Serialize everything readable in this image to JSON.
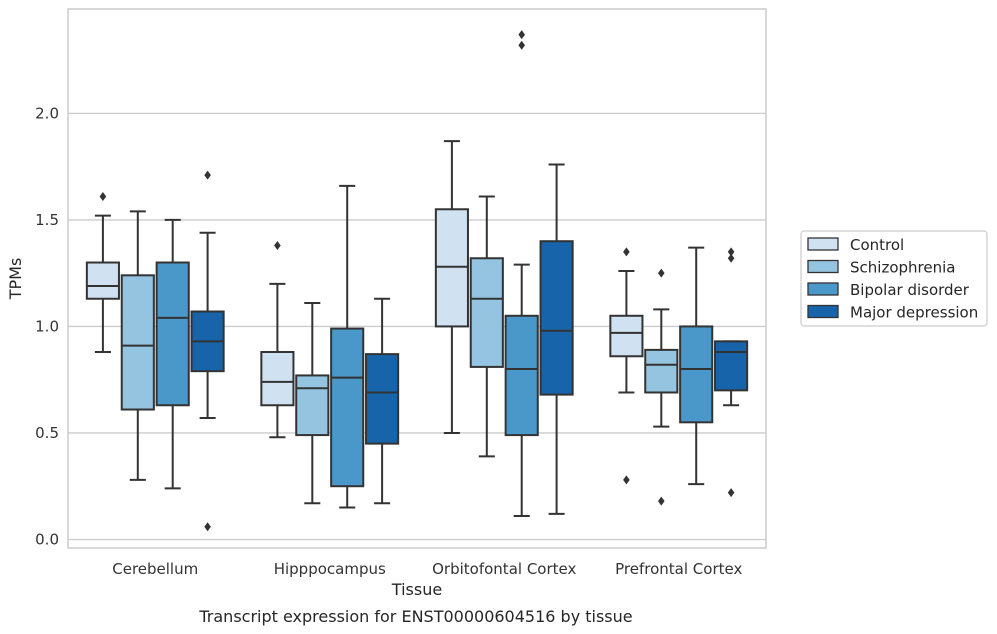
{
  "chart_data": {
    "type": "boxplot",
    "title": "",
    "caption": "Transcript expression for ENST00000604516 by tissue",
    "xlabel": "Tissue",
    "ylabel": "TPMs",
    "ylim": [
      -0.04,
      2.49
    ],
    "yticks": [
      0.0,
      0.5,
      1.0,
      1.5,
      2.0
    ],
    "ytick_labels": [
      "0.0",
      "0.5",
      "1.0",
      "1.5",
      "2.0"
    ],
    "grid": true,
    "legend_position": "right",
    "categories": [
      "Cerebellum",
      "Hipppocampus",
      "Orbitofontal Cortex",
      "Prefrontal Cortex"
    ],
    "series": [
      {
        "name": "Control",
        "color": "#d0e1f2",
        "boxes": [
          {
            "whisker_low": 0.88,
            "q1": 1.13,
            "median": 1.19,
            "q3": 1.3,
            "whisker_high": 1.52,
            "outliers": [
              1.61
            ]
          },
          {
            "whisker_low": 0.48,
            "q1": 0.63,
            "median": 0.74,
            "q3": 0.88,
            "whisker_high": 1.2,
            "outliers": [
              1.38
            ]
          },
          {
            "whisker_low": 0.5,
            "q1": 1.0,
            "median": 1.28,
            "q3": 1.55,
            "whisker_high": 1.87,
            "outliers": []
          },
          {
            "whisker_low": 0.69,
            "q1": 0.86,
            "median": 0.97,
            "q3": 1.05,
            "whisker_high": 1.26,
            "outliers": [
              1.35,
              0.28
            ]
          }
        ]
      },
      {
        "name": "Schizophrenia",
        "color": "#94c4df",
        "boxes": [
          {
            "whisker_low": 0.28,
            "q1": 0.61,
            "median": 0.91,
            "q3": 1.24,
            "whisker_high": 1.54,
            "outliers": []
          },
          {
            "whisker_low": 0.17,
            "q1": 0.49,
            "median": 0.71,
            "q3": 0.77,
            "whisker_high": 1.11,
            "outliers": []
          },
          {
            "whisker_low": 0.39,
            "q1": 0.81,
            "median": 1.13,
            "q3": 1.32,
            "whisker_high": 1.61,
            "outliers": []
          },
          {
            "whisker_low": 0.53,
            "q1": 0.69,
            "median": 0.82,
            "q3": 0.89,
            "whisker_high": 1.08,
            "outliers": [
              1.25,
              0.18
            ]
          }
        ]
      },
      {
        "name": "Bipolar disorder",
        "color": "#4a98c9",
        "boxes": [
          {
            "whisker_low": 0.24,
            "q1": 0.63,
            "median": 1.04,
            "q3": 1.3,
            "whisker_high": 1.5,
            "outliers": []
          },
          {
            "whisker_low": 0.15,
            "q1": 0.25,
            "median": 0.76,
            "q3": 0.99,
            "whisker_high": 1.66,
            "outliers": []
          },
          {
            "whisker_low": 0.11,
            "q1": 0.49,
            "median": 0.8,
            "q3": 1.05,
            "whisker_high": 1.29,
            "outliers": [
              2.32,
              2.37
            ]
          },
          {
            "whisker_low": 0.26,
            "q1": 0.55,
            "median": 0.8,
            "q3": 1.0,
            "whisker_high": 1.37,
            "outliers": []
          }
        ]
      },
      {
        "name": "Major depression",
        "color": "#1764ab",
        "boxes": [
          {
            "whisker_low": 0.57,
            "q1": 0.79,
            "median": 0.93,
            "q3": 1.07,
            "whisker_high": 1.44,
            "outliers": [
              1.71,
              0.06
            ]
          },
          {
            "whisker_low": 0.17,
            "q1": 0.45,
            "median": 0.69,
            "q3": 0.87,
            "whisker_high": 1.13,
            "outliers": []
          },
          {
            "whisker_low": 0.12,
            "q1": 0.68,
            "median": 0.98,
            "q3": 1.4,
            "whisker_high": 1.76,
            "outliers": []
          },
          {
            "whisker_low": 0.63,
            "q1": 0.7,
            "median": 0.88,
            "q3": 0.93,
            "whisker_high": 0.93,
            "outliers": [
              1.35,
              1.32,
              0.22
            ]
          }
        ]
      }
    ]
  }
}
